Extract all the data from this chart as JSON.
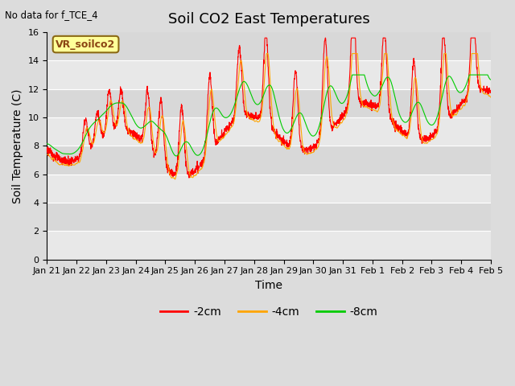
{
  "title": "Soil CO2 East Temperatures",
  "no_data_text": "No data for f_TCE_4",
  "vr_label": "VR_soilco2",
  "ylabel": "Soil Temperature (C)",
  "xlabel": "Time",
  "ylim": [
    0,
    16
  ],
  "yticks": [
    0,
    2,
    4,
    6,
    8,
    10,
    12,
    14,
    16
  ],
  "colors": {
    "2cm": "#ff0000",
    "4cm": "#ffa500",
    "8cm": "#00cc00"
  },
  "legend_labels": [
    "-2cm",
    "-4cm",
    "-8cm"
  ],
  "bg_color": "#dcdcdc",
  "plot_bg_light": "#e8e8e8",
  "plot_bg_dark": "#d8d8d8",
  "xtick_labels": [
    "Jan 21",
    "Jan 22",
    "Jan 23",
    "Jan 24",
    "Jan 25",
    "Jan 26",
    "Jan 27",
    "Jan 28",
    "Jan 29",
    "Jan 30",
    "Jan 31",
    "Feb 1",
    "Feb 2",
    "Feb 3",
    "Feb 4",
    "Feb 5"
  ],
  "title_fontsize": 13,
  "axis_fontsize": 10,
  "tick_fontsize": 8,
  "legend_fontsize": 10
}
